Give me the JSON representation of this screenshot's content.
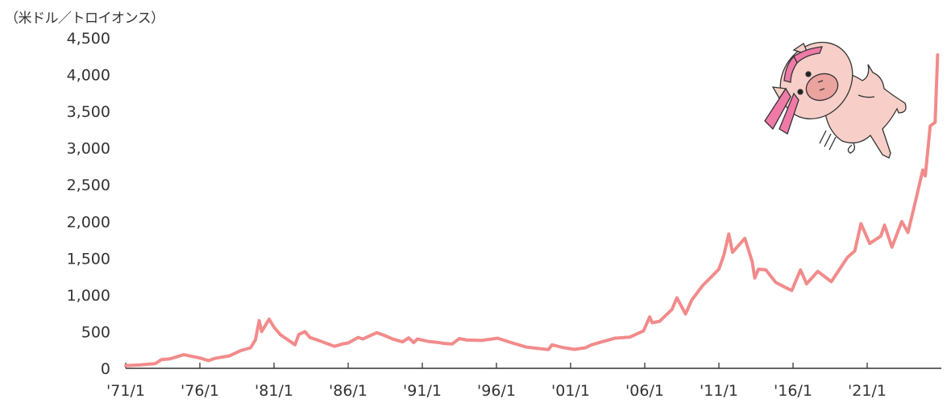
{
  "chart_data": {
    "type": "line",
    "title": "",
    "ylabel": "（米ドル／トロイオンス）",
    "xlabel": "",
    "ylim": [
      0,
      4500
    ],
    "xlim": [
      "1971-01",
      "2026-01"
    ],
    "grid": false,
    "line_color": "#f28b8b",
    "y_ticks": [
      "0",
      "500",
      "1,000",
      "1,500",
      "2,000",
      "2,500",
      "3,000",
      "3,500",
      "4,000",
      "4,500"
    ],
    "x_ticks": [
      "'71/1",
      "'76/1",
      "'81/1",
      "'86/1",
      "'91/1",
      "'96/1",
      "'01/1",
      "'06/1",
      "'11/1",
      "'16/1",
      "'21/1"
    ],
    "series": [
      {
        "x": [
          "1971-01",
          "1972-01",
          "1973-01",
          "1973-06",
          "1974-01",
          "1974-12",
          "1975-06",
          "1976-01",
          "1976-08",
          "1977-01",
          "1978-01",
          "1978-10",
          "1979-06",
          "1979-10",
          "1980-01",
          "1980-03",
          "1980-09",
          "1981-01",
          "1981-06",
          "1982-06",
          "1982-09",
          "1983-02",
          "1983-06",
          "1984-01",
          "1985-02",
          "1985-08",
          "1986-01",
          "1986-09",
          "1987-01",
          "1987-12",
          "1988-06",
          "1989-01",
          "1989-09",
          "1990-02",
          "1990-06",
          "1990-09",
          "1991-06",
          "1992-01",
          "1992-06",
          "1993-01",
          "1993-07",
          "1994-01",
          "1995-01",
          "1996-02",
          "1997-01",
          "1998-01",
          "1999-07",
          "1999-10",
          "2000-06",
          "2001-04",
          "2002-01",
          "2002-06",
          "2003-01",
          "2004-01",
          "2005-01",
          "2005-12",
          "2006-05",
          "2006-07",
          "2007-01",
          "2007-11",
          "2008-03",
          "2008-10",
          "2009-03",
          "2009-12",
          "2010-06",
          "2011-01",
          "2011-05",
          "2011-09",
          "2011-12",
          "2012-10",
          "2013-04",
          "2013-06",
          "2013-09",
          "2014-03",
          "2014-11",
          "2015-07",
          "2015-12",
          "2016-07",
          "2016-12",
          "2017-09",
          "2018-08",
          "2019-09",
          "2020-03",
          "2020-08",
          "2021-03",
          "2021-12",
          "2022-03",
          "2022-09",
          "2023-05",
          "2023-10",
          "2024-03",
          "2024-10",
          "2024-12",
          "2025-04",
          "2025-08",
          "2025-10"
        ],
        "y": [
          37,
          46,
          65,
          120,
          130,
          185,
          165,
          140,
          105,
          135,
          170,
          240,
          280,
          390,
          650,
          500,
          670,
          560,
          460,
          320,
          460,
          500,
          420,
          380,
          300,
          330,
          345,
          420,
          400,
          485,
          450,
          400,
          360,
          415,
          350,
          400,
          365,
          355,
          340,
          330,
          405,
          385,
          380,
          410,
          350,
          290,
          255,
          320,
          285,
          258,
          280,
          320,
          355,
          410,
          425,
          510,
          700,
          620,
          640,
          800,
          960,
          740,
          930,
          1130,
          1230,
          1350,
          1540,
          1830,
          1580,
          1770,
          1450,
          1230,
          1350,
          1340,
          1170,
          1100,
          1060,
          1340,
          1150,
          1320,
          1180,
          1510,
          1600,
          1970,
          1700,
          1800,
          1950,
          1650,
          2000,
          1850,
          2200,
          2700,
          2620,
          3300,
          3350,
          4270
        ]
      }
    ]
  }
}
